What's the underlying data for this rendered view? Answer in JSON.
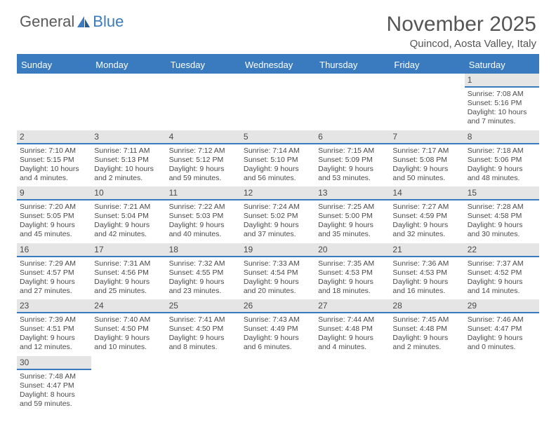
{
  "logo": {
    "part1": "General",
    "part2": "Blue"
  },
  "title": {
    "month": "November 2025",
    "location": "Quincod, Aosta Valley, Italy"
  },
  "header_color": "#3a7bbf",
  "day_bg": "#e5e5e5",
  "text_color": "#4a4a4a",
  "daynames": [
    "Sunday",
    "Monday",
    "Tuesday",
    "Wednesday",
    "Thursday",
    "Friday",
    "Saturday"
  ],
  "weeks": [
    {
      "nums": [
        "",
        "",
        "",
        "",
        "",
        "",
        "1"
      ],
      "cells": [
        "",
        "",
        "",
        "",
        "",
        "",
        "Sunrise: 7:08 AM\nSunset: 5:16 PM\nDaylight: 10 hours and 7 minutes."
      ]
    },
    {
      "nums": [
        "2",
        "3",
        "4",
        "5",
        "6",
        "7",
        "8"
      ],
      "cells": [
        "Sunrise: 7:10 AM\nSunset: 5:15 PM\nDaylight: 10 hours and 4 minutes.",
        "Sunrise: 7:11 AM\nSunset: 5:13 PM\nDaylight: 10 hours and 2 minutes.",
        "Sunrise: 7:12 AM\nSunset: 5:12 PM\nDaylight: 9 hours and 59 minutes.",
        "Sunrise: 7:14 AM\nSunset: 5:10 PM\nDaylight: 9 hours and 56 minutes.",
        "Sunrise: 7:15 AM\nSunset: 5:09 PM\nDaylight: 9 hours and 53 minutes.",
        "Sunrise: 7:17 AM\nSunset: 5:08 PM\nDaylight: 9 hours and 50 minutes.",
        "Sunrise: 7:18 AM\nSunset: 5:06 PM\nDaylight: 9 hours and 48 minutes."
      ]
    },
    {
      "nums": [
        "9",
        "10",
        "11",
        "12",
        "13",
        "14",
        "15"
      ],
      "cells": [
        "Sunrise: 7:20 AM\nSunset: 5:05 PM\nDaylight: 9 hours and 45 minutes.",
        "Sunrise: 7:21 AM\nSunset: 5:04 PM\nDaylight: 9 hours and 42 minutes.",
        "Sunrise: 7:22 AM\nSunset: 5:03 PM\nDaylight: 9 hours and 40 minutes.",
        "Sunrise: 7:24 AM\nSunset: 5:02 PM\nDaylight: 9 hours and 37 minutes.",
        "Sunrise: 7:25 AM\nSunset: 5:00 PM\nDaylight: 9 hours and 35 minutes.",
        "Sunrise: 7:27 AM\nSunset: 4:59 PM\nDaylight: 9 hours and 32 minutes.",
        "Sunrise: 7:28 AM\nSunset: 4:58 PM\nDaylight: 9 hours and 30 minutes."
      ]
    },
    {
      "nums": [
        "16",
        "17",
        "18",
        "19",
        "20",
        "21",
        "22"
      ],
      "cells": [
        "Sunrise: 7:29 AM\nSunset: 4:57 PM\nDaylight: 9 hours and 27 minutes.",
        "Sunrise: 7:31 AM\nSunset: 4:56 PM\nDaylight: 9 hours and 25 minutes.",
        "Sunrise: 7:32 AM\nSunset: 4:55 PM\nDaylight: 9 hours and 23 minutes.",
        "Sunrise: 7:33 AM\nSunset: 4:54 PM\nDaylight: 9 hours and 20 minutes.",
        "Sunrise: 7:35 AM\nSunset: 4:53 PM\nDaylight: 9 hours and 18 minutes.",
        "Sunrise: 7:36 AM\nSunset: 4:53 PM\nDaylight: 9 hours and 16 minutes.",
        "Sunrise: 7:37 AM\nSunset: 4:52 PM\nDaylight: 9 hours and 14 minutes."
      ]
    },
    {
      "nums": [
        "23",
        "24",
        "25",
        "26",
        "27",
        "28",
        "29"
      ],
      "cells": [
        "Sunrise: 7:39 AM\nSunset: 4:51 PM\nDaylight: 9 hours and 12 minutes.",
        "Sunrise: 7:40 AM\nSunset: 4:50 PM\nDaylight: 9 hours and 10 minutes.",
        "Sunrise: 7:41 AM\nSunset: 4:50 PM\nDaylight: 9 hours and 8 minutes.",
        "Sunrise: 7:43 AM\nSunset: 4:49 PM\nDaylight: 9 hours and 6 minutes.",
        "Sunrise: 7:44 AM\nSunset: 4:48 PM\nDaylight: 9 hours and 4 minutes.",
        "Sunrise: 7:45 AM\nSunset: 4:48 PM\nDaylight: 9 hours and 2 minutes.",
        "Sunrise: 7:46 AM\nSunset: 4:47 PM\nDaylight: 9 hours and 0 minutes."
      ]
    },
    {
      "nums": [
        "30",
        "",
        "",
        "",
        "",
        "",
        ""
      ],
      "cells": [
        "Sunrise: 7:48 AM\nSunset: 4:47 PM\nDaylight: 8 hours and 59 minutes.",
        "",
        "",
        "",
        "",
        "",
        ""
      ]
    }
  ]
}
